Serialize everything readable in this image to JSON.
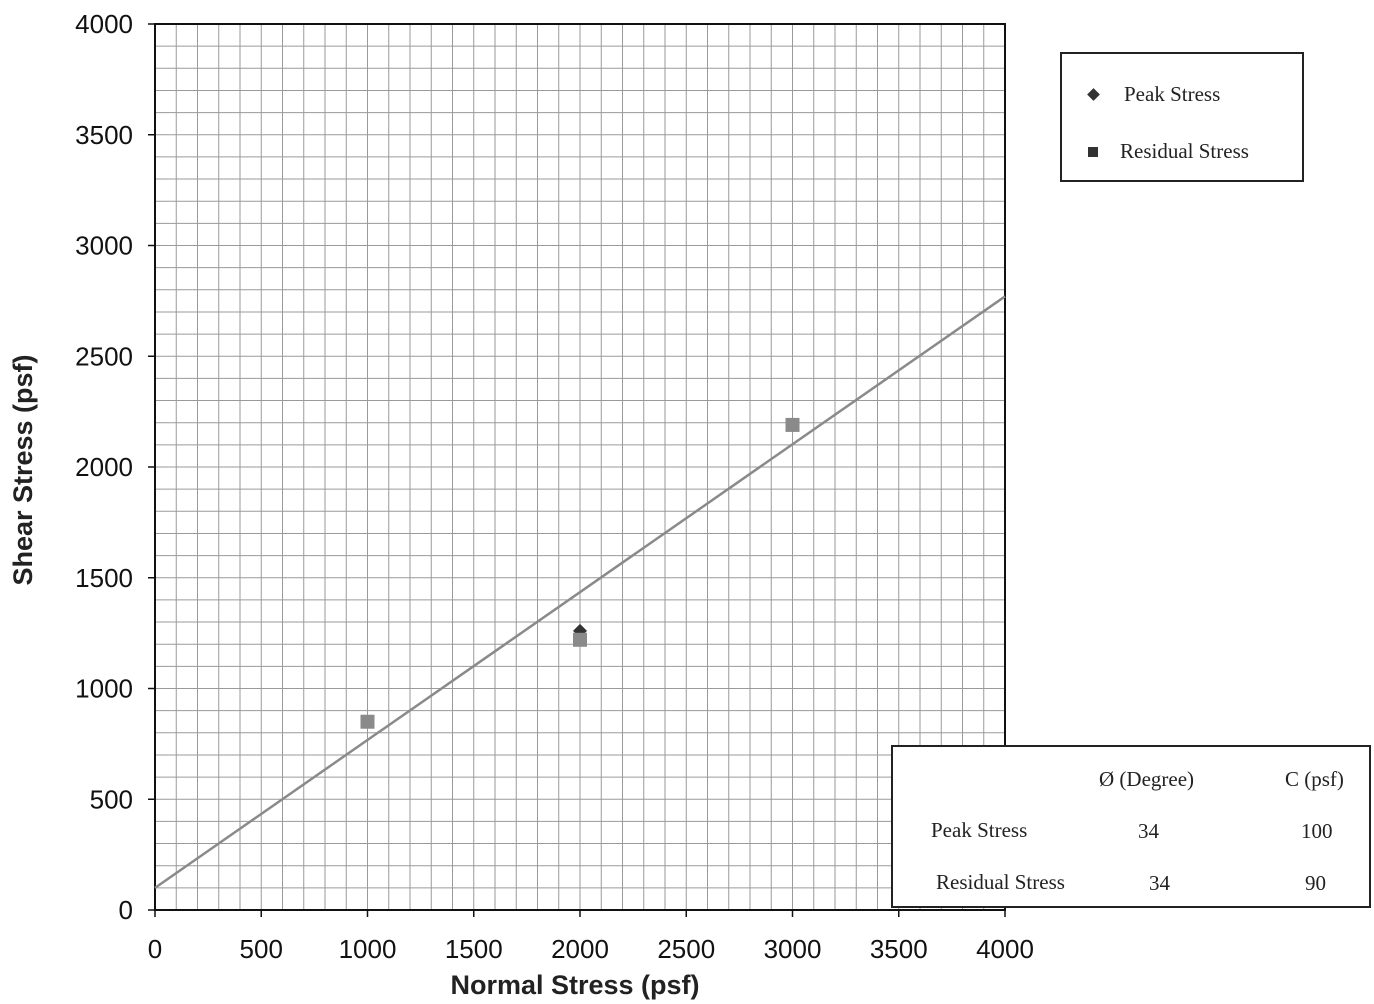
{
  "chart_data": {
    "type": "scatter",
    "xlabel": "Normal Stress (psf)",
    "ylabel": "Shear Stress (psf)",
    "xlim": [
      0,
      4000
    ],
    "ylim": [
      0,
      4000
    ],
    "xticks": [
      "0",
      "500",
      "1000",
      "1500",
      "2000",
      "2500",
      "3000",
      "3500",
      "4000"
    ],
    "yticks": [
      "0",
      "500",
      "1000",
      "1500",
      "2000",
      "2500",
      "3000",
      "3500",
      "4000"
    ],
    "grid": true,
    "legend_position": "top-right",
    "series": [
      {
        "name": "Peak Stress",
        "marker": "diamond",
        "color": "#333333",
        "points": [
          {
            "x": 2000,
            "y": 1260
          }
        ]
      },
      {
        "name": "Residual Stress",
        "marker": "square",
        "color": "#8a8a8a",
        "points": [
          {
            "x": 1000,
            "y": 850
          },
          {
            "x": 2000,
            "y": 1220
          },
          {
            "x": 3000,
            "y": 2190
          }
        ]
      }
    ],
    "fit_line": {
      "x0": 0,
      "y0": 100,
      "x1": 4000,
      "y1": 2770,
      "color": "#8a8a8a"
    }
  },
  "legend": {
    "items": [
      {
        "label": "Peak Stress",
        "marker": "diamond"
      },
      {
        "label": "Residual Stress",
        "marker": "square"
      }
    ]
  },
  "param_table": {
    "col1_header": "Ø (Degree)",
    "col2_header": "C (psf)",
    "rows": [
      {
        "label": "Peak Stress",
        "phi": "34",
        "c": "100"
      },
      {
        "label": "Residual Stress",
        "phi": "34",
        "c": "90"
      }
    ]
  }
}
